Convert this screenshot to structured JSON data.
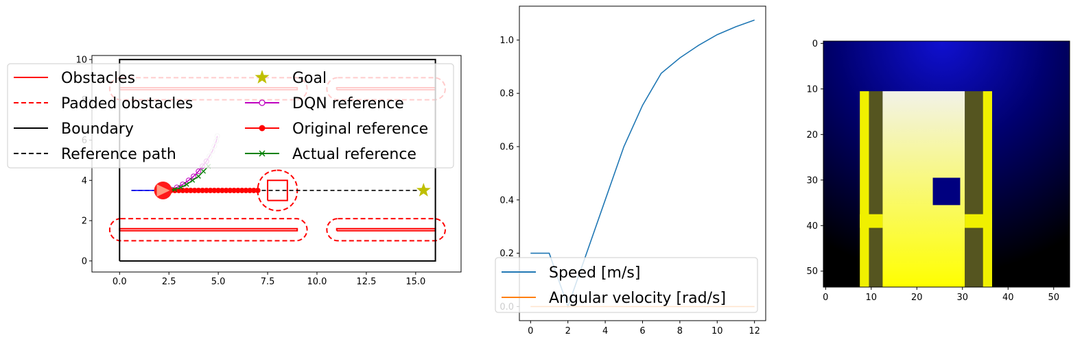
{
  "chart_data": [
    {
      "type": "line",
      "panel": "trajectory map",
      "xlim": [
        -1.4,
        17.3
      ],
      "ylim": [
        -0.55,
        10.2
      ],
      "xticks": [
        "0.0",
        "2.5",
        "5.0",
        "7.5",
        "10.0",
        "12.5",
        "15.0"
      ],
      "yticks": [
        "0",
        "2",
        "4",
        "6",
        "8",
        "10"
      ],
      "grid": false,
      "legend_position": "upper-left",
      "legend": [
        {
          "label": "Obstacles",
          "color": "#ff0000",
          "style": "solid"
        },
        {
          "label": "Padded obstacles",
          "color": "#ff0000",
          "style": "dashed"
        },
        {
          "label": "Boundary",
          "color": "#000000",
          "style": "solid"
        },
        {
          "label": "Reference path",
          "color": "#000000",
          "style": "dashed"
        },
        {
          "label": "Goal",
          "color": "#bfbf00",
          "style": "star-marker"
        },
        {
          "label": "DQN reference",
          "color": "#bf00bf",
          "style": "line-open-circle"
        },
        {
          "label": "Original reference",
          "color": "#ff0000",
          "style": "line-filled-circle"
        },
        {
          "label": "Actual reference",
          "color": "#008000",
          "style": "line-x"
        }
      ],
      "boundary": {
        "x": [
          0,
          16,
          16,
          0,
          0
        ],
        "y": [
          0,
          0,
          10,
          10,
          0
        ]
      },
      "obstacles": [
        {
          "x": [
            0,
            9,
            9,
            0,
            0
          ],
          "y": [
            1.5,
            1.5,
            1.6,
            1.6,
            1.5
          ]
        },
        {
          "x": [
            11,
            16,
            16,
            11,
            11
          ],
          "y": [
            1.5,
            1.5,
            1.6,
            1.6,
            1.5
          ]
        },
        {
          "x": [
            0,
            9,
            9,
            0,
            0
          ],
          "y": [
            8.5,
            8.5,
            8.6,
            8.6,
            8.5
          ]
        },
        {
          "x": [
            11,
            16,
            16,
            11,
            11
          ],
          "y": [
            8.5,
            8.5,
            8.6,
            8.6,
            8.5
          ]
        },
        {
          "x": [
            7.5,
            8.5,
            8.5,
            7.5,
            7.5
          ],
          "y": [
            3.0,
            3.0,
            4.0,
            4.0,
            3.0
          ]
        }
      ],
      "padded_obstacles": [
        {
          "x": [
            -0.5,
            9.5
          ],
          "y": [
            1.0,
            2.1
          ]
        },
        {
          "x": [
            10.5,
            16.5
          ],
          "y": [
            1.0,
            2.1
          ]
        },
        {
          "x": [
            -0.5,
            9.5
          ],
          "y": [
            8.0,
            9.1
          ]
        },
        {
          "x": [
            10.5,
            16.5
          ],
          "y": [
            8.0,
            9.1
          ]
        },
        {
          "x": [
            7.0,
            9.0
          ],
          "y": [
            2.5,
            4.5
          ]
        }
      ],
      "reference_path": {
        "x": [
          0.6,
          15.4
        ],
        "y": [
          3.5,
          3.5
        ]
      },
      "goal": {
        "x": 15.4,
        "y": 3.5
      },
      "robot": {
        "x": 2.2,
        "y": 3.5
      },
      "traveled_path": {
        "x": [
          0.6,
          2.2
        ],
        "y": [
          3.5,
          3.5
        ]
      },
      "original_reference": {
        "x": [
          2.2,
          2.4,
          2.6,
          2.8,
          3.0,
          3.2,
          3.4,
          3.6,
          3.8,
          4.0,
          4.2,
          4.4,
          4.6,
          4.8,
          5.0,
          5.2,
          5.4,
          5.6,
          5.8,
          6.0,
          6.2,
          6.4,
          6.6,
          6.8,
          7.0
        ],
        "y": [
          3.5,
          3.5,
          3.5,
          3.5,
          3.5,
          3.5,
          3.5,
          3.5,
          3.5,
          3.5,
          3.5,
          3.5,
          3.5,
          3.5,
          3.5,
          3.5,
          3.5,
          3.5,
          3.5,
          3.5,
          3.5,
          3.5,
          3.5,
          3.5,
          3.5
        ]
      },
      "dqn_reference": {
        "x": [
          2.6,
          2.9,
          3.2,
          3.5,
          3.75,
          4.0,
          4.2,
          4.4,
          4.55,
          4.7,
          4.8,
          4.9,
          4.95
        ],
        "y": [
          3.55,
          3.65,
          3.8,
          4.0,
          4.2,
          4.45,
          4.7,
          4.95,
          5.2,
          5.45,
          5.7,
          5.95,
          6.2
        ]
      },
      "actual_reference": {
        "x": [
          2.5,
          2.8,
          3.1,
          3.4,
          3.7,
          4.0,
          4.25,
          4.5
        ],
        "y": [
          3.5,
          3.55,
          3.65,
          3.8,
          4.0,
          4.2,
          4.45,
          4.7
        ]
      }
    },
    {
      "type": "line",
      "panel": "velocity profile",
      "xlim": [
        -0.6,
        12.6
      ],
      "ylim": [
        -0.053,
        1.127
      ],
      "xticks": [
        "0",
        "2",
        "4",
        "6",
        "8",
        "10",
        "12"
      ],
      "yticks": [
        "0.0",
        "0.2",
        "0.4",
        "0.6",
        "0.8",
        "1.0"
      ],
      "grid": false,
      "legend_position": "lower-left",
      "series": [
        {
          "name": "Speed [m/s]",
          "color": "#1f77b4",
          "x": [
            0,
            1,
            2,
            3,
            4,
            5,
            6,
            7,
            8,
            9,
            10,
            11,
            12
          ],
          "y": [
            0.2,
            0.2,
            0.0,
            0.2,
            0.4,
            0.6,
            0.755,
            0.875,
            0.933,
            0.98,
            1.02,
            1.05,
            1.075
          ]
        },
        {
          "name": "Angular velocity [rad/s]",
          "color": "#ff7f0e",
          "x": [
            0,
            1,
            2,
            3,
            4,
            5,
            6,
            7,
            8,
            9,
            10,
            11,
            12
          ],
          "y": [
            0,
            0,
            0,
            0,
            0,
            0,
            0,
            0,
            0,
            0,
            0,
            0,
            0
          ]
        }
      ]
    },
    {
      "type": "heatmap",
      "panel": "observation image",
      "rows": 54,
      "cols": 54,
      "xticks": [
        "0",
        "10",
        "20",
        "30",
        "40",
        "50"
      ],
      "yticks": [
        "0",
        "10",
        "20",
        "30",
        "40",
        "50"
      ],
      "background_gradient": {
        "center": [
          26,
          0
        ],
        "inner": "#1010d0",
        "outer": "#000000"
      },
      "free_corridor": {
        "cols": [
          13,
          31
        ],
        "rows": [
          11,
          54
        ],
        "top_color": "#f2f2e8",
        "bottom_color": "#ffff00"
      },
      "walls": [
        {
          "cols": [
            8,
            10
          ],
          "rows": [
            11,
            54
          ]
        },
        {
          "cols": [
            35,
            37
          ],
          "rows": [
            11,
            54
          ]
        },
        {
          "cols": [
            8,
            13
          ],
          "rows": [
            38,
            41
          ]
        },
        {
          "cols": [
            31,
            37
          ],
          "rows": [
            38,
            41
          ]
        }
      ],
      "blocks": [
        {
          "cols": [
            24,
            30
          ],
          "rows": [
            30,
            36
          ],
          "color": "#00007f"
        }
      ]
    }
  ]
}
